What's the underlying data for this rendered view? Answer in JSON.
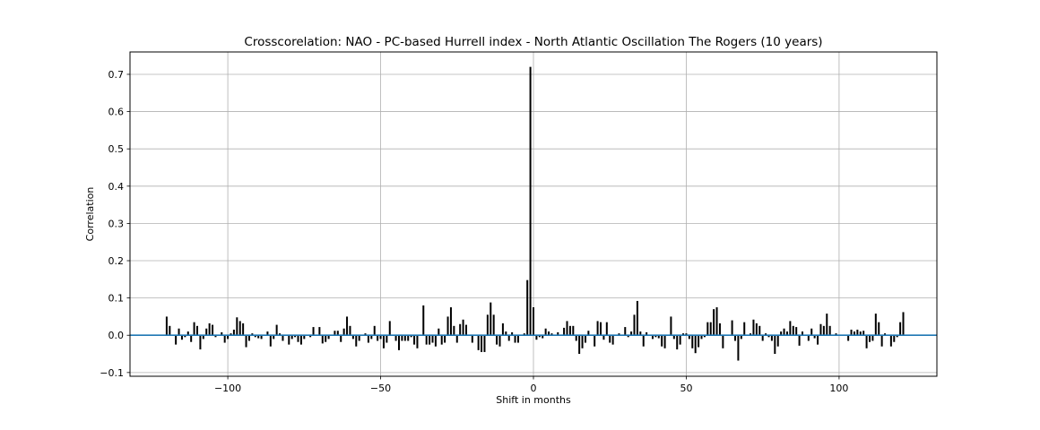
{
  "chart_data": {
    "type": "bar",
    "title": "Crosscorelation: NAO - PC-based Hurrell index - North Atlantic Oscillation The Rogers (10 years)",
    "xlabel": "Shift in months",
    "ylabel": "Correlation",
    "xlim": [
      -132,
      132
    ],
    "ylim": [
      -0.11,
      0.76
    ],
    "x_ticks": [
      -100,
      -50,
      0,
      50,
      100
    ],
    "x_tick_labels": [
      "−100",
      "−50",
      "0",
      "50",
      "100"
    ],
    "y_ticks": [
      -0.1,
      0.0,
      0.1,
      0.2,
      0.3,
      0.4,
      0.5,
      0.6,
      0.7
    ],
    "y_tick_labels": [
      "−0.1",
      "0.0",
      "0.1",
      "0.2",
      "0.3",
      "0.4",
      "0.5",
      "0.6",
      "0.7"
    ],
    "grid": true,
    "bar_color": "#000000",
    "zero_line_color": "#1f77b4",
    "x_start": -120,
    "x_end": 120,
    "values": [
      0.05,
      0.025,
      0.0,
      -0.025,
      0.018,
      -0.012,
      -0.005,
      0.01,
      -0.018,
      0.035,
      0.025,
      -0.038,
      -0.01,
      0.018,
      0.032,
      0.028,
      -0.005,
      0.0,
      0.008,
      -0.02,
      -0.01,
      0.005,
      0.015,
      0.048,
      0.038,
      0.032,
      -0.032,
      -0.015,
      0.005,
      -0.005,
      -0.008,
      -0.01,
      0.0,
      0.01,
      -0.03,
      -0.01,
      0.028,
      0.005,
      -0.015,
      0.0,
      -0.025,
      -0.01,
      -0.005,
      -0.018,
      -0.025,
      -0.01,
      0.0,
      -0.005,
      0.022,
      0.0,
      0.022,
      -0.022,
      -0.018,
      -0.01,
      0.0,
      0.012,
      0.012,
      -0.018,
      0.018,
      0.05,
      0.025,
      -0.01,
      -0.03,
      -0.015,
      0.0,
      0.005,
      -0.02,
      -0.01,
      0.025,
      -0.015,
      -0.01,
      -0.035,
      -0.02,
      0.038,
      0.0,
      -0.015,
      -0.04,
      -0.015,
      -0.015,
      -0.015,
      -0.005,
      -0.025,
      -0.035,
      0.0,
      0.08,
      -0.025,
      -0.025,
      -0.02,
      -0.03,
      0.018,
      -0.025,
      -0.02,
      0.05,
      0.075,
      0.025,
      -0.02,
      0.03,
      0.042,
      0.028,
      0.0,
      -0.02,
      0.0,
      -0.04,
      -0.045,
      -0.045,
      0.055,
      0.088,
      0.055,
      -0.025,
      -0.03,
      0.032,
      0.01,
      -0.015,
      0.008,
      -0.02,
      -0.02,
      0.0,
      0.005,
      0.148,
      0.72,
      0.075,
      -0.012,
      -0.005,
      -0.008,
      0.018,
      0.01,
      0.005,
      0.0,
      0.008,
      0.0,
      0.02,
      0.038,
      0.025,
      0.025,
      -0.015,
      -0.05,
      -0.035,
      -0.02,
      0.012,
      0.0,
      -0.03,
      0.038,
      0.035,
      -0.012,
      0.035,
      -0.02,
      -0.025,
      0.0,
      0.005,
      0.0,
      0.022,
      -0.005,
      0.01,
      0.055,
      0.092,
      0.01,
      -0.03,
      0.008,
      0.0,
      -0.01,
      -0.005,
      -0.008,
      -0.03,
      -0.035,
      0.0,
      0.05,
      -0.01,
      -0.038,
      -0.025,
      0.005,
      0.005,
      -0.01,
      -0.035,
      -0.048,
      -0.032,
      -0.01,
      -0.005,
      0.035,
      0.035,
      0.07,
      0.075,
      0.032,
      -0.035,
      0.0,
      0.0,
      0.04,
      -0.015,
      -0.068,
      -0.01,
      0.035,
      0.0,
      0.005,
      0.042,
      0.032,
      0.025,
      -0.015,
      0.005,
      -0.005,
      -0.015,
      -0.05,
      -0.03,
      0.01,
      0.018,
      0.01,
      0.038,
      0.025,
      0.022,
      -0.028,
      0.01,
      0.0,
      -0.015,
      0.018,
      -0.008,
      -0.025,
      0.03,
      0.025,
      0.058,
      0.025,
      0.0,
      0.005,
      0.0,
      0.0,
      0.0,
      -0.015,
      0.015,
      0.01,
      0.015,
      0.01,
      0.012,
      -0.035,
      -0.018,
      -0.015,
      0.058,
      0.035,
      -0.03,
      0.005,
      0.0,
      -0.03,
      -0.018,
      -0.005,
      0.035,
      0.062
    ]
  }
}
